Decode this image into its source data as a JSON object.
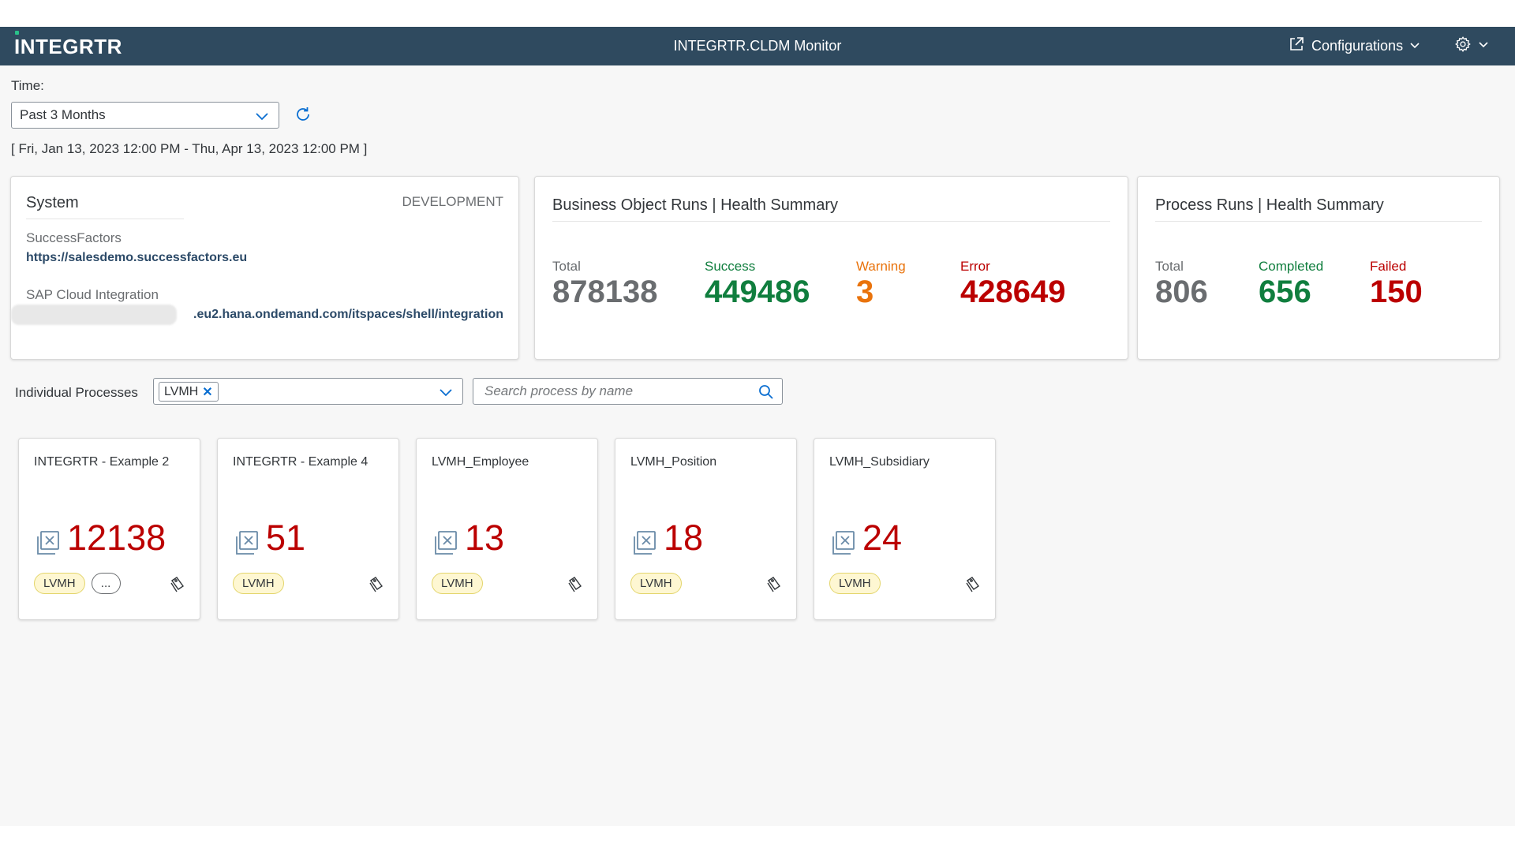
{
  "shell": {
    "logo": "INTEGRTR",
    "title": "INTEGRTR.CLDM Monitor",
    "configurations_label": "Configurations",
    "icons": {
      "config": "external-link-icon",
      "settings": "gear-icon"
    }
  },
  "time": {
    "label": "Time:",
    "selected": "Past 3 Months",
    "range": "[ Fri, Jan 13, 2023 12:00 PM - Thu, Apr 13, 2023 12:00 PM ]"
  },
  "system": {
    "title": "System",
    "environment": "DEVELOPMENT",
    "sf_label": "SuccessFactors",
    "sf_url": "https://salesdemo.successfactors.eu",
    "cpi_label": "SAP Cloud Integration",
    "cpi_url": ".eu2.hana.ondemand.com/itspaces/shell/integration"
  },
  "bo_summary": {
    "title": "Business Object Runs | Health Summary",
    "total_label": "Total",
    "total": "878138",
    "success_label": "Success",
    "success": "449486",
    "warning_label": "Warning",
    "warning": "3",
    "error_label": "Error",
    "error": "428649"
  },
  "process_summary": {
    "title": "Process Runs | Health Summary",
    "total_label": "Total",
    "total": "806",
    "completed_label": "Completed",
    "completed": "656",
    "failed_label": "Failed",
    "failed": "150"
  },
  "filter": {
    "label": "Individual Processes",
    "token": "LVMH",
    "search_placeholder": "Search process by name"
  },
  "tiles": [
    {
      "title": "INTEGRTR - Example 2",
      "count": "12138",
      "tag": "LVMH",
      "more": "..."
    },
    {
      "title": "INTEGRTR - Example 4",
      "count": "51",
      "tag": "LVMH"
    },
    {
      "title": "LVMH_Employee",
      "count": "13",
      "tag": "LVMH"
    },
    {
      "title": "LVMH_Position",
      "count": "18",
      "tag": "LVMH"
    },
    {
      "title": "LVMH_Subsidiary",
      "count": "24",
      "tag": "LVMH"
    }
  ],
  "colors": {
    "shellbar": "#2f4a5f",
    "success": "#107e3e",
    "warning": "#e9730c",
    "error": "#bb0000",
    "link": "#2c4a68"
  }
}
